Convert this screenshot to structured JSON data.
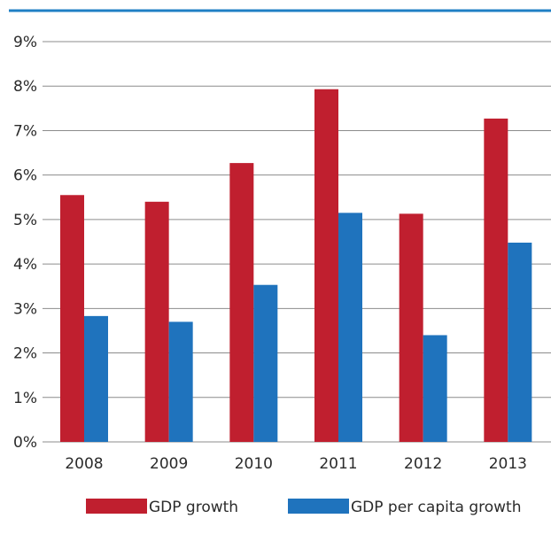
{
  "colors": {
    "top_rule": "#1f7fc4",
    "gridline": "#8c8c8c",
    "gdp_growth": "#c01f2f",
    "gdp_per_capita_growth": "#1f73bd"
  },
  "chart_data": {
    "type": "bar",
    "title": "",
    "xlabel": "",
    "ylabel": "",
    "ylim": [
      0,
      9
    ],
    "y_tick_values": [
      0,
      1,
      2,
      3,
      4,
      5,
      6,
      7,
      8,
      9
    ],
    "y_tick_labels": [
      "0%",
      "1%",
      "2%",
      "3%",
      "4%",
      "5%",
      "6%",
      "7%",
      "8%",
      "9%"
    ],
    "grid": true,
    "legend_position": "bottom",
    "categories": [
      "2008",
      "2009",
      "2010",
      "2011",
      "2012",
      "2013"
    ],
    "series": [
      {
        "name": "GDP growth",
        "color": "#c01f2f",
        "values": [
          5.55,
          5.4,
          6.27,
          7.93,
          5.13,
          7.27
        ]
      },
      {
        "name": "GDP per capita growth",
        "color": "#1f73bd",
        "values": [
          2.83,
          2.7,
          3.53,
          5.15,
          2.4,
          4.48
        ]
      }
    ]
  }
}
